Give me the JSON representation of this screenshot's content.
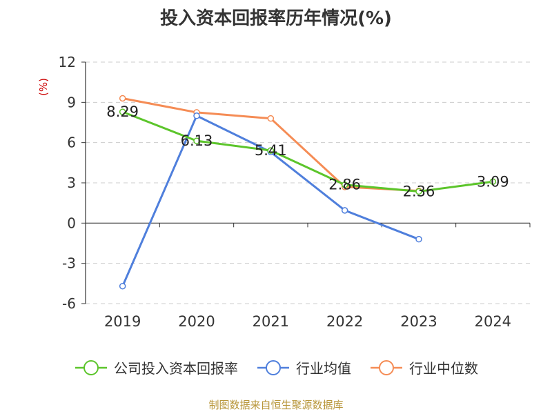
{
  "title": "投入资本回报率历年情况(%)",
  "footer": "制图数据来自恒生聚源数据库",
  "chart_data": {
    "type": "line",
    "ylabel": "(%)",
    "ylim": [
      -6,
      12
    ],
    "yticks": [
      12,
      9,
      6,
      3,
      0,
      -3,
      -6
    ],
    "grid": true,
    "legend_position": "bottom",
    "categories": [
      "2019",
      "2020",
      "2021",
      "2022",
      "2023",
      "2024"
    ],
    "series": [
      {
        "name": "公司投入资本回报率",
        "color": "#5cc52b",
        "values": [
          8.29,
          6.13,
          5.41,
          2.86,
          2.36,
          3.09
        ],
        "labels": [
          "8.29",
          "6.13",
          "5.41",
          "2.86",
          "2.36",
          "3.09"
        ]
      },
      {
        "name": "行业均值",
        "color": "#4f7fdc",
        "values": [
          -4.7,
          8.0,
          5.3,
          0.95,
          -1.2,
          null
        ]
      },
      {
        "name": "行业中位数",
        "color": "#f58c55",
        "values": [
          9.3,
          8.25,
          7.8,
          2.7,
          2.4,
          null
        ]
      }
    ]
  }
}
